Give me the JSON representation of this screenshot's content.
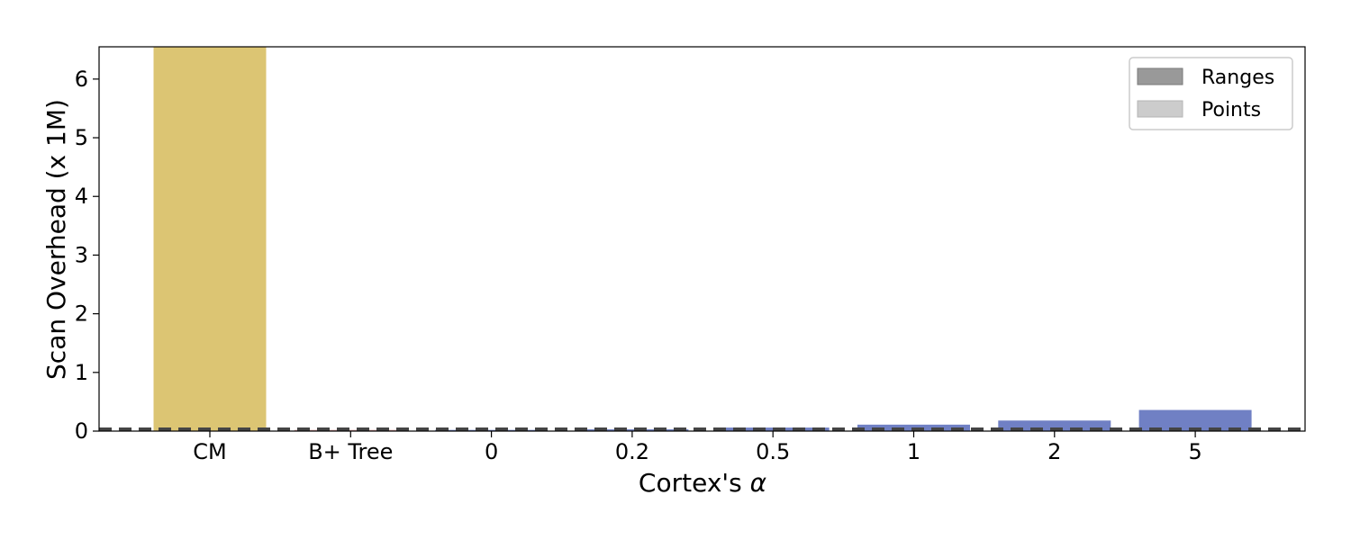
{
  "chart_data": {
    "type": "bar",
    "xlabel_prefix": "Cortex's ",
    "xlabel_symbol": "α",
    "ylabel": "Scan Overhead (x 1M)",
    "ylim": [
      0,
      6.55
    ],
    "yticks": [
      0,
      1,
      2,
      3,
      4,
      5,
      6
    ],
    "reference_line": 0.03,
    "categories": [
      "CM",
      "B+ Tree",
      "0",
      "0.2",
      "0.5",
      "1",
      "2",
      "5"
    ],
    "series": [
      {
        "name": "Ranges",
        "values": [
          6.55,
          0.02,
          0.02,
          0.03,
          0.06,
          0.11,
          0.18,
          0.36
        ],
        "bar_colors": [
          "#dcc573",
          "#d9a1a1",
          "#7080c4",
          "#7080c4",
          "#7080c4",
          "#7080c4",
          "#7080c4",
          "#7080c4"
        ]
      },
      {
        "name": "Points",
        "values": [
          0,
          0,
          0,
          0,
          0,
          0,
          0,
          0
        ]
      }
    ],
    "legend": {
      "placement": "top-right",
      "colors": [
        "#999999",
        "#cccccc"
      ]
    },
    "grid": false
  }
}
